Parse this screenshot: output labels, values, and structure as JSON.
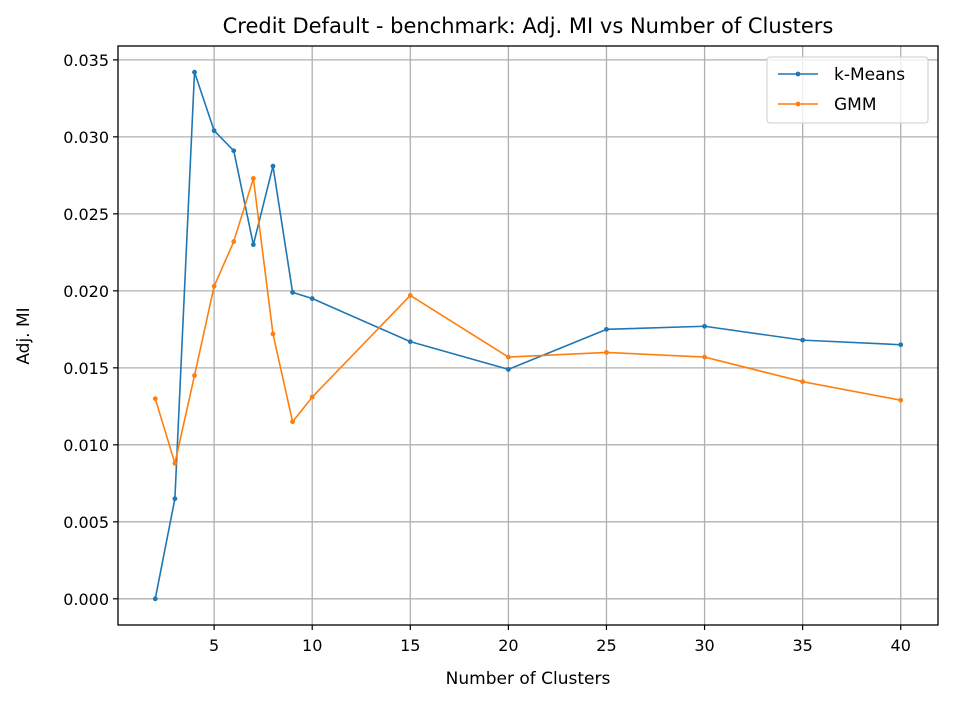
{
  "chart_data": {
    "type": "line",
    "title": "Credit Default - benchmark: Adj. MI vs Number of Clusters",
    "xlabel": "Number of Clusters",
    "ylabel": "Adj. MI",
    "xlim": [
      0.1,
      41.9
    ],
    "ylim": [
      -0.0017,
      0.0359
    ],
    "x_ticks": [
      5,
      10,
      15,
      20,
      25,
      30,
      35,
      40
    ],
    "x_tick_labels": [
      "5",
      "10",
      "15",
      "20",
      "25",
      "30",
      "35",
      "40"
    ],
    "y_ticks": [
      0.0,
      0.005,
      0.01,
      0.015,
      0.02,
      0.025,
      0.03,
      0.035
    ],
    "y_tick_labels": [
      "0.000",
      "0.005",
      "0.010",
      "0.015",
      "0.020",
      "0.025",
      "0.030",
      "0.035"
    ],
    "grid": true,
    "legend_position": "top-right",
    "series": [
      {
        "name": "k-Means",
        "color": "#1f77b4",
        "x": [
          2,
          3,
          4,
          5,
          6,
          7,
          8,
          9,
          10,
          15,
          20,
          25,
          30,
          35,
          40
        ],
        "y": [
          0.0,
          0.0065,
          0.0342,
          0.0304,
          0.0291,
          0.023,
          0.0281,
          0.0199,
          0.0195,
          0.0167,
          0.0149,
          0.0175,
          0.0177,
          0.0168,
          0.0165
        ]
      },
      {
        "name": "GMM",
        "color": "#ff7f0e",
        "x": [
          2,
          3,
          4,
          5,
          6,
          7,
          8,
          9,
          10,
          15,
          20,
          25,
          30,
          35,
          40
        ],
        "y": [
          0.013,
          0.0088,
          0.0145,
          0.0203,
          0.0232,
          0.0273,
          0.0172,
          0.0115,
          0.0131,
          0.0197,
          0.0157,
          0.016,
          0.0157,
          0.0141,
          0.0129
        ]
      }
    ]
  }
}
